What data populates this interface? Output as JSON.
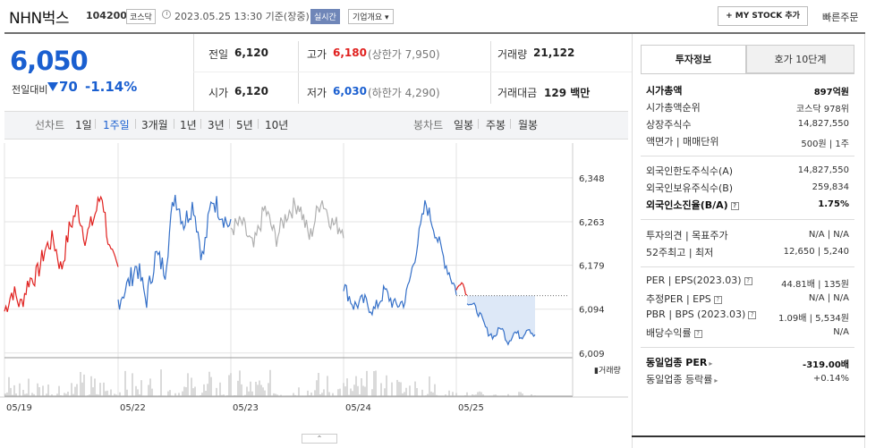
{
  "header": {
    "stock_name": "NHN벅스",
    "stock_code": "104200",
    "market": "코스닥",
    "datetime": "2023.05.25 13:30  기준(장중)",
    "realtime_badge": "실시간",
    "company_button": "기업개요 ▾",
    "mystock_button": "+ MY STOCK 추가",
    "quick_order": "빠른주문"
  },
  "price": {
    "current": "6,050",
    "prev_day_label": "전일대비",
    "change": "70",
    "change_pct": "-1.14%",
    "direction": "down"
  },
  "quote": {
    "prev_close_label": "전일",
    "prev_close": "6,120",
    "high_label": "고가",
    "high": "6,180",
    "upper_limit": "(상한가 7,950)",
    "volume_label": "거래량",
    "volume": "21,122",
    "open_label": "시가",
    "open": "6,120",
    "low_label": "저가",
    "low": "6,030",
    "lower_limit": "(하한가 4,290)",
    "amount_label": "거래대금",
    "amount": "129 백만"
  },
  "period_bar": {
    "line_chart_label": "선차트",
    "line_periods": [
      "1일",
      "1주일",
      "3개월",
      "1년",
      "3년",
      "5년",
      "10년"
    ],
    "selected": "1주일",
    "candle_chart_label": "봉차트",
    "candle_periods": [
      "일봉",
      "주봉",
      "월봉"
    ]
  },
  "chart_data": {
    "type": "line",
    "x_ticks": [
      "05/19",
      "05/22",
      "05/23",
      "05/24",
      "05/25"
    ],
    "y_ticks": [
      6348,
      6263,
      6179,
      6094,
      6009
    ],
    "ylim": [
      6000,
      6360
    ],
    "volume_label": "거래량",
    "colors": {
      "up": "#e0201e",
      "down": "#3570c8",
      "neutral": "#b0b0b0",
      "fill": "#dde8f7"
    }
  },
  "invest_info": {
    "tabs": [
      "투자정보",
      "호가 10단계"
    ],
    "rows1": [
      {
        "label": "시가총액",
        "value": "897억원"
      },
      {
        "label": "시가총액순위",
        "value": "코스닥 978위"
      },
      {
        "label": "상장주식수",
        "value": "14,827,550"
      },
      {
        "label": "액면가 | 매매단위",
        "value": "500원 | 1주"
      }
    ],
    "rows2": [
      {
        "label": "외국인한도주식수(A)",
        "value": "14,827,550"
      },
      {
        "label": "외국인보유주식수(B)",
        "value": "259,834"
      },
      {
        "label": "외국인소진율(B/A)",
        "value": "1.75%"
      }
    ],
    "rows3": [
      {
        "label": "투자의견 | 목표주가",
        "value": "N/A | N/A"
      },
      {
        "label": "52주최고 | 최저",
        "value": "12,650 | 5,240"
      }
    ],
    "rows4": [
      {
        "label": "PER | EPS(2023.03)",
        "value": "44.81배 | 135원"
      },
      {
        "label": "추정PER | EPS",
        "value": "N/A | N/A"
      },
      {
        "label": "PBR | BPS (2023.03)",
        "value": "1.09배 | 5,534원"
      },
      {
        "label": "배당수익률",
        "value": "N/A"
      }
    ],
    "rows5": [
      {
        "label": "동일업종 PER",
        "value": "-319.00배"
      },
      {
        "label": "동일업종 등락률",
        "value": "+0.14%"
      }
    ]
  }
}
